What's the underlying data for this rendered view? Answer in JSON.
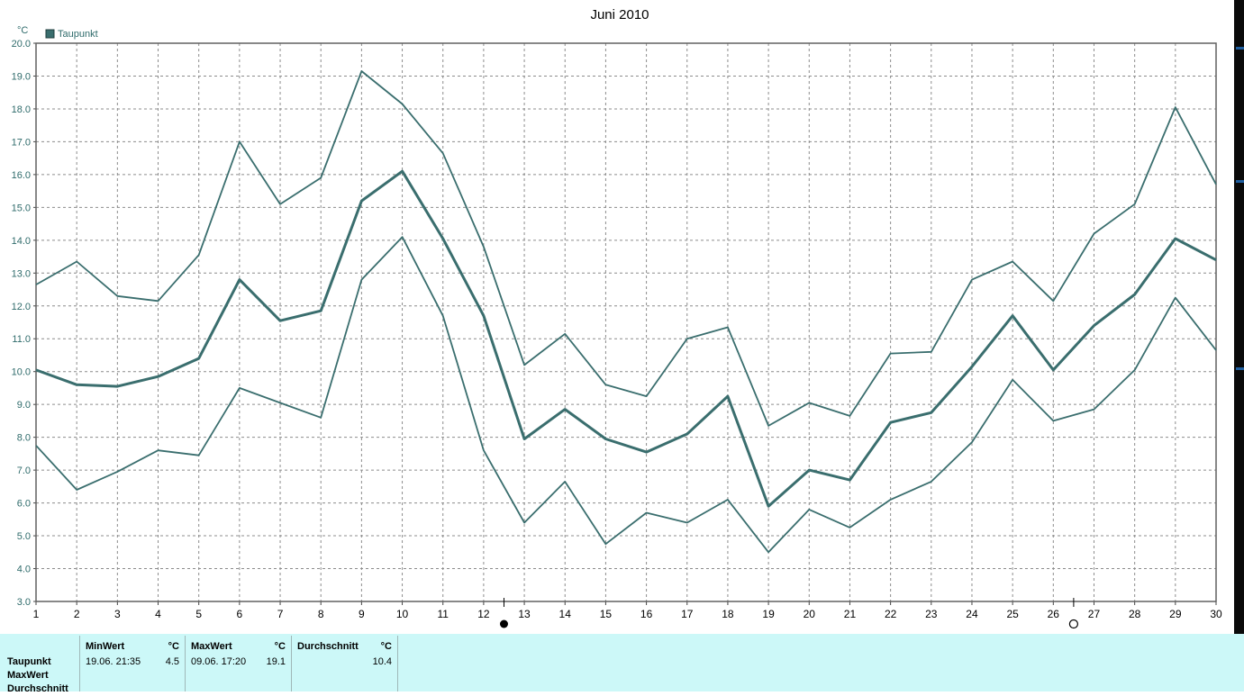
{
  "chart_data": {
    "type": "line",
    "title": "Juni 2010",
    "unit": "°C",
    "legend": {
      "label": "Taupunkt",
      "color": "#3a6e6e",
      "placement": "top-left"
    },
    "ylim": [
      3.0,
      20.0
    ],
    "yticks": [
      "3.0",
      "4.0",
      "5.0",
      "6.0",
      "7.0",
      "8.0",
      "9.0",
      "10.0",
      "11.0",
      "12.0",
      "13.0",
      "14.0",
      "15.0",
      "16.0",
      "17.0",
      "18.0",
      "19.0",
      "20.0"
    ],
    "x": [
      "1",
      "2",
      "3",
      "4",
      "5",
      "6",
      "7",
      "8",
      "9",
      "10",
      "11",
      "12",
      "13",
      "14",
      "15",
      "16",
      "17",
      "18",
      "19",
      "20",
      "21",
      "22",
      "23",
      "24",
      "25",
      "26",
      "27",
      "28",
      "29",
      "30"
    ],
    "grid": true,
    "series": [
      {
        "role": "max",
        "values": [
          12.65,
          13.35,
          12.3,
          12.15,
          13.55,
          17.0,
          15.1,
          15.9,
          19.15,
          18.15,
          16.65,
          13.8,
          10.2,
          11.15,
          9.6,
          9.25,
          11.0,
          11.35,
          8.35,
          9.05,
          8.65,
          10.55,
          10.6,
          12.8,
          13.35,
          12.15,
          14.2,
          15.1,
          18.05,
          15.7
        ]
      },
      {
        "role": "avg",
        "values": [
          10.05,
          9.6,
          9.55,
          9.85,
          10.4,
          12.8,
          11.55,
          11.85,
          15.2,
          16.1,
          14.05,
          11.7,
          7.95,
          8.85,
          7.95,
          7.55,
          8.1,
          9.25,
          5.9,
          7.0,
          6.7,
          8.45,
          8.75,
          10.15,
          11.7,
          10.05,
          11.4,
          12.35,
          14.05,
          13.4
        ]
      },
      {
        "role": "min",
        "values": [
          7.75,
          6.4,
          6.95,
          7.6,
          7.45,
          9.5,
          9.05,
          8.6,
          12.8,
          14.1,
          11.7,
          7.6,
          5.4,
          6.65,
          4.75,
          5.7,
          5.4,
          6.1,
          4.5,
          5.8,
          5.25,
          6.1,
          6.65,
          7.85,
          9.75,
          8.5,
          8.85,
          10.05,
          12.25,
          10.65
        ]
      }
    ],
    "moon_phase_marks": [
      {
        "after_day": 12.5,
        "symbol": "●"
      },
      {
        "after_day": 26.5,
        "symbol": "○"
      }
    ],
    "line_color": "#3a6e6e",
    "grid_color": "#8c8c8c"
  },
  "stats": {
    "row_labels": [
      "Taupunkt",
      "MaxWert",
      "Durchschnitt"
    ],
    "columns": [
      {
        "header": "MinWert",
        "unit": "°C",
        "when": "19.06.  21:35",
        "value": "4.5"
      },
      {
        "header": "MaxWert",
        "unit": "°C",
        "when": "09.06.  17:20",
        "value": "19.1"
      },
      {
        "header": "Durchschnitt",
        "unit": "°C",
        "when": "",
        "value": "10.4"
      }
    ]
  }
}
